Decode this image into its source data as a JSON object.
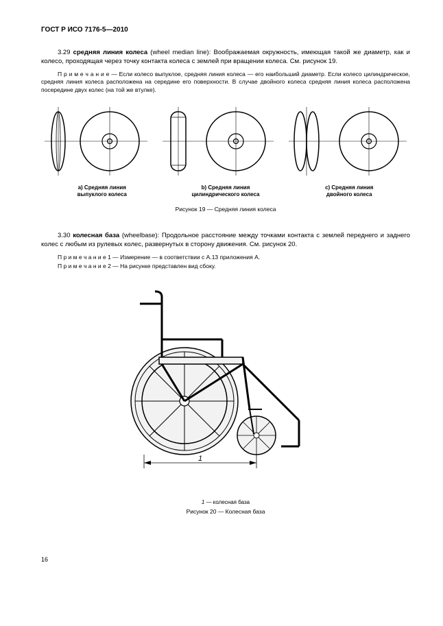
{
  "header": "ГОСТ Р ИСО 7176-5—2010",
  "def1_num": "3.29 ",
  "def1_term": "средняя линия колеса",
  "def1_en": " (wheel median line): ",
  "def1_text": "Воображаемая окружность, имеющая такой же диаметр, как и колесо, проходящая через точку контакта колеса с землей при вращении колеса. См. рисунок 19.",
  "note1_prefix": "П р и м е ч а н и е — ",
  "note1_text": "Если колесо выпуклое, средняя линия колеса — его наибольший диаметр. Если колесо цилиндрическое, средняя линия колеса расположена на середине его поверхности. В случае двойного колеса средняя линия колеса расположена посередине двух колес (на той же втулке).",
  "fig19_label_a": "a) Средняя линия\nвыпуклого колеса",
  "fig19_label_b": "b) Средняя линия\nцилиндрического колеса",
  "fig19_label_c": "c) Средняя линия\nдвойного колеса",
  "fig19_caption": "Рисунок 19 — Средняя линия колеса",
  "def2_num": "3.30 ",
  "def2_term": "колесная база",
  "def2_en": " (wheelbase): ",
  "def2_text": "Продольное расстояние между точками контакта с землей переднего и заднего колес с любым из рулевых колес, развернутых в сторону движения. См. рисунок 20.",
  "note2a_prefix": "П р и м е ч а н и е 1 — ",
  "note2a_text": "Измерение — в соответствии с  A.13 приложения A.",
  "note2b_prefix": "П р и м е ч а н и е 2 — ",
  "note2b_text": "На рисунке  представлен вид сбоку.",
  "fig20_legend_num": "1",
  "fig20_legend_text": " — колесная база",
  "fig20_caption": "Рисунок 20 — Колесная база",
  "pagenum": "16",
  "colors": {
    "text": "#000000",
    "stroke": "#000000",
    "fill_wheelchair": "#f2f2f2",
    "bg": "#ffffff"
  }
}
